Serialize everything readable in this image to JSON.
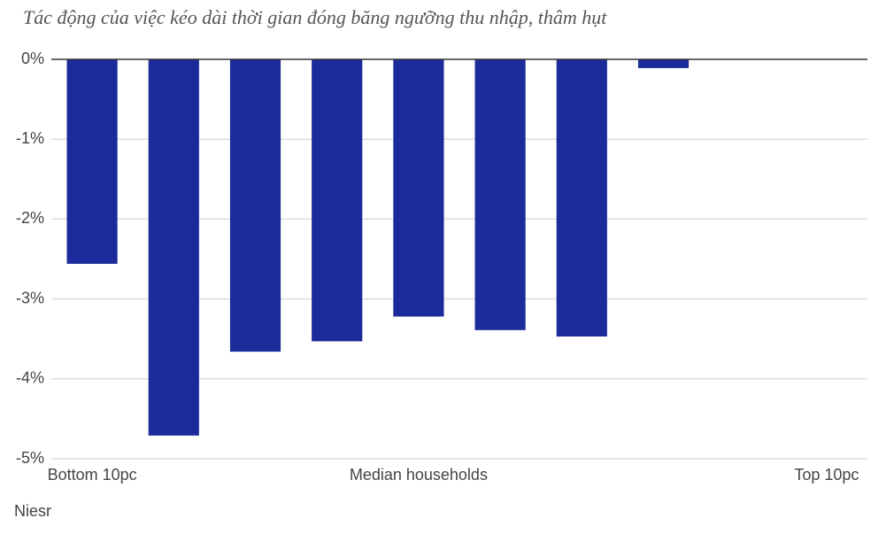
{
  "chart_data": {
    "type": "bar",
    "title": "Tác động của việc kéo dài thời gian đóng băng ngưỡng thu nhập, thâm hụt",
    "source": "Niesr",
    "categories": [
      "Bottom 10pc",
      null,
      null,
      null,
      "Median households",
      null,
      null,
      null,
      null,
      "Top 10pc"
    ],
    "values": [
      -2.56,
      -4.71,
      -3.66,
      -3.53,
      -3.22,
      -3.39,
      -3.47,
      -0.11,
      0,
      0
    ],
    "color": "#1c2b9a",
    "ylim": [
      -5,
      0
    ],
    "yticks": [
      {
        "value": 0,
        "label": "0%"
      },
      {
        "value": -1,
        "label": "-1%"
      },
      {
        "value": -2,
        "label": "-2%"
      },
      {
        "value": -3,
        "label": "-3%"
      },
      {
        "value": -4,
        "label": "-4%"
      },
      {
        "value": -5,
        "label": "-5%"
      }
    ],
    "grid": true
  }
}
